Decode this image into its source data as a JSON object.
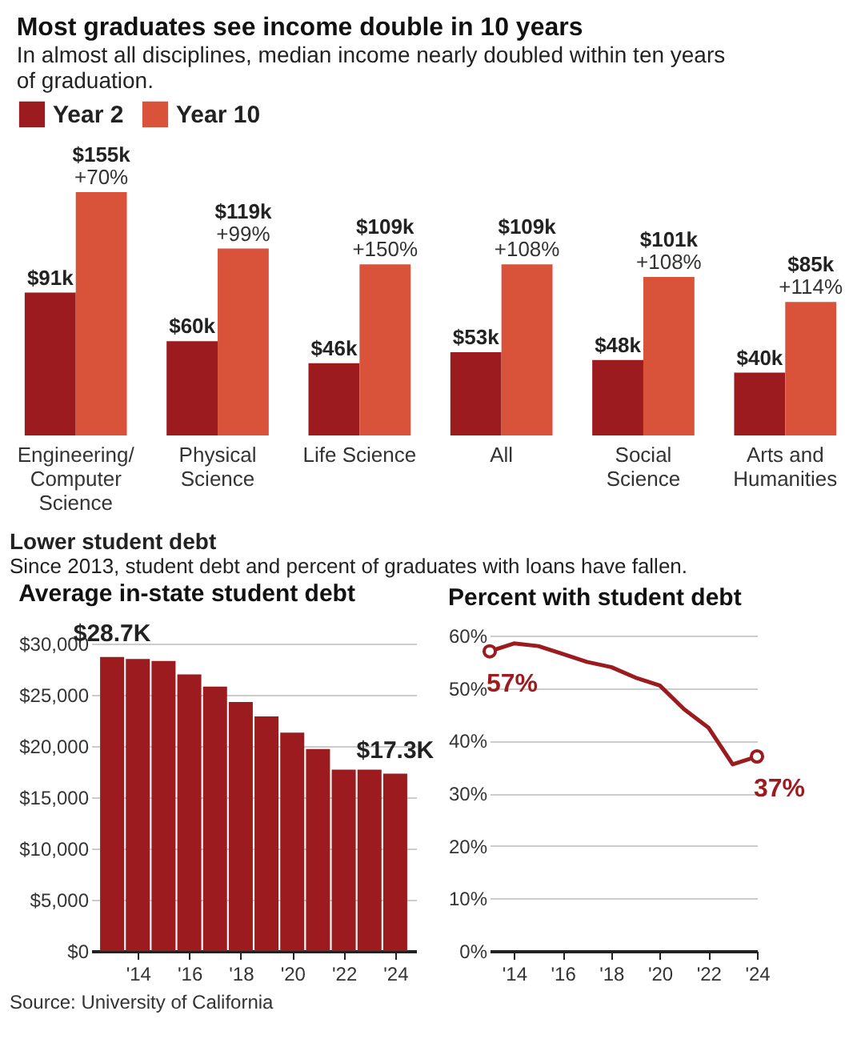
{
  "chart_data": [
    {
      "type": "bar",
      "title": "Most graduates see income double in 10 years",
      "subtitle": "In almost all disciplines, median income nearly doubled within ten years of graduation.",
      "categories": [
        "Engineering/ Computer Science",
        "Physical Science",
        "Life Science",
        "All",
        "Social Science",
        "Arts and Humanities"
      ],
      "series": [
        {
          "name": "Year 2",
          "color": "#9b1b1f",
          "values": [
            91,
            60,
            46,
            53,
            48,
            40
          ],
          "value_labels": [
            "$91k",
            "$60k",
            "$46k",
            "$53k",
            "$48k",
            "$40k"
          ]
        },
        {
          "name": "Year 10",
          "color": "#d9533b",
          "values": [
            155,
            119,
            109,
            109,
            101,
            85
          ],
          "value_labels": [
            "$155k",
            "$119k",
            "$109k",
            "$109k",
            "$101k",
            "$85k"
          ]
        }
      ],
      "annotations": [
        {
          "text": "+70%",
          "x": "Engineering/ Computer Science",
          "y": 155
        },
        {
          "text": "+99%",
          "x": "Physical Science",
          "y": 119
        },
        {
          "text": "+150%",
          "x": "Life Science",
          "y": 109
        },
        {
          "text": "+108%",
          "x": "All",
          "y": 109
        },
        {
          "text": "+108%",
          "x": "Social Science",
          "y": 101
        },
        {
          "text": "+114%",
          "x": "Arts and Humanities",
          "y": 85
        }
      ],
      "legend": "top"
    },
    {
      "type": "bar",
      "title": "Average in-state student debt",
      "x": [
        2013,
        2014,
        2015,
        2016,
        2017,
        2018,
        2019,
        2020,
        2021,
        2022,
        2023,
        2024
      ],
      "values": [
        28700,
        28500,
        28300,
        27000,
        25800,
        24300,
        22900,
        21300,
        19700,
        17700,
        17700,
        17300
      ],
      "value_labels": [
        "$28.7K",
        null,
        null,
        null,
        null,
        null,
        null,
        null,
        null,
        null,
        null,
        "$17.3K"
      ],
      "color": "#9b1b1f",
      "xlim": [
        2012.5,
        2024.5
      ],
      "xticks": [
        {
          "value": 2014,
          "label": "'14"
        },
        {
          "value": 2016,
          "label": "'16"
        },
        {
          "value": 2018,
          "label": "'18"
        },
        {
          "value": 2020,
          "label": "'20"
        },
        {
          "value": 2022,
          "label": "'22"
        },
        {
          "value": 2024,
          "label": "'24"
        }
      ],
      "ylim": [
        0,
        30000
      ],
      "yticks": [
        {
          "value": 0,
          "label": "$0"
        },
        {
          "value": 5000,
          "label": "$5,000"
        },
        {
          "value": 10000,
          "label": "$10,000"
        },
        {
          "value": 15000,
          "label": "$15,000"
        },
        {
          "value": 20000,
          "label": "$20,000"
        },
        {
          "value": 25000,
          "label": "$25,000"
        },
        {
          "value": 30000,
          "label": "$30,000"
        }
      ],
      "grid": "y",
      "annotations": [
        "Lower student debt",
        "Since 2013, student debt and percent of graduates with loans have fallen.",
        "Source: University of California"
      ]
    },
    {
      "type": "line",
      "title": "Percent with student debt",
      "x": [
        2013,
        2014,
        2015,
        2016,
        2017,
        2018,
        2019,
        2020,
        2021,
        2022,
        2023,
        2024
      ],
      "values": [
        57,
        58.5,
        58,
        56.5,
        55,
        54,
        52,
        50.5,
        46,
        42.5,
        35.5,
        37
      ],
      "value_labels": [
        "57%",
        null,
        null,
        null,
        null,
        null,
        null,
        null,
        null,
        null,
        null,
        "37%"
      ],
      "color": "#9b1b1f",
      "xlim": [
        2013,
        2024
      ],
      "xticks": [
        {
          "value": 2014,
          "label": "'14"
        },
        {
          "value": 2016,
          "label": "'16"
        },
        {
          "value": 2018,
          "label": "'18"
        },
        {
          "value": 2020,
          "label": "'20"
        },
        {
          "value": 2022,
          "label": "'22"
        },
        {
          "value": 2024,
          "label": "'24"
        }
      ],
      "ylim": [
        0,
        60
      ],
      "yticks": [
        {
          "value": 0,
          "label": "0%"
        },
        {
          "value": 10,
          "label": "10%"
        },
        {
          "value": 20,
          "label": "20%"
        },
        {
          "value": 30,
          "label": "30%"
        },
        {
          "value": 40,
          "label": "40%"
        },
        {
          "value": 50,
          "label": "50%"
        },
        {
          "value": 60,
          "label": "60%"
        }
      ],
      "grid": "y"
    }
  ]
}
